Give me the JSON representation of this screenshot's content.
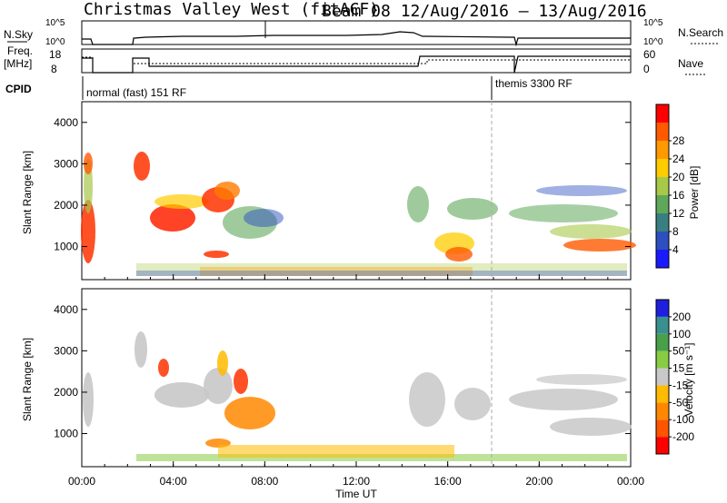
{
  "title": {
    "station": "Christmas Valley West (fitACF)",
    "beam_info": "Beam 08  12/Aug/2016 – 13/Aug/2016"
  },
  "header_panels": {
    "nsky_label": "N.Sky",
    "nsearch_label": "N.Search",
    "freq_label_1": "Freq.",
    "freq_label_2": "[MHz]",
    "nave_label": "Nave",
    "cpid_label": "CPID",
    "nsky_ticks": [
      "10^5",
      "10^0"
    ],
    "nsearch_ticks": [
      "10^5",
      "10^0"
    ],
    "freq_ticks": [
      "18",
      "8"
    ],
    "nave_ticks": [
      "60",
      "0"
    ],
    "cpid_segments": [
      "normal (fast) 151 RF",
      "themis 3300 RF"
    ]
  },
  "chart_data": [
    {
      "type": "heatmap",
      "panel": "power",
      "ylabel": "Slant Range [km]",
      "colorbar_label": "Power [dB]",
      "colorbar_ticks": [
        "4",
        "8",
        "12",
        "16",
        "20",
        "24",
        "28"
      ],
      "colorbar_colors": [
        "#1a1aff",
        "#2d4fbf",
        "#3a7f7f",
        "#5fa85a",
        "#a8c84a",
        "#ffcc00",
        "#ff9900",
        "#ff5a00",
        "#ff0000"
      ],
      "y_ticks": [
        1000,
        2000,
        3000,
        4000
      ],
      "ylim": [
        200,
        4500
      ],
      "x_ticks": [
        "00:00",
        "04:00",
        "08:00",
        "12:00",
        "16:00",
        "20:00",
        "00:00"
      ],
      "xlim_hours": [
        0,
        24
      ]
    },
    {
      "type": "heatmap",
      "panel": "velocity",
      "ylabel": "Slant Range [km]",
      "colorbar_label": "Velocity [m s⁻¹]",
      "colorbar_ticks": [
        "-200",
        "-100",
        "-50",
        "-15",
        "15",
        "50",
        "100",
        "200"
      ],
      "colorbar_colors": [
        "#ff0000",
        "#ff5500",
        "#ff8800",
        "#ffbb00",
        "#c8c8c8",
        "#88cc44",
        "#4aa04a",
        "#3a8f8f",
        "#1f1fdf"
      ],
      "y_ticks": [
        1000,
        2000,
        3000,
        4000
      ],
      "ylim": [
        200,
        4500
      ],
      "x_ticks": [
        "00:00",
        "04:00",
        "08:00",
        "12:00",
        "16:00",
        "20:00",
        "00:00"
      ],
      "xlim_hours": [
        0,
        24
      ],
      "xlabel": "Time UT"
    }
  ]
}
